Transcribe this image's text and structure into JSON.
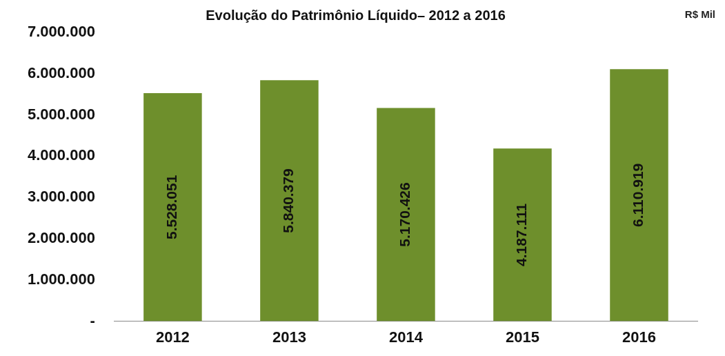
{
  "chart_data": {
    "type": "bar",
    "title": "Evolução do Patrimônio Líquido– 2012 a 2016",
    "annotations": [
      "R$ Mil"
    ],
    "categories": [
      "2012",
      "2013",
      "2014",
      "2015",
      "2016"
    ],
    "values": [
      5528051,
      5840379,
      5170426,
      4187111,
      6110919
    ],
    "value_labels": [
      "5.528.051",
      "5.840.379",
      "5.170.426",
      "4.187.111",
      "6.110.919"
    ],
    "color": "#6e8f2c",
    "ylim": [
      0,
      7000000
    ],
    "yticks": [
      {
        "value": 0,
        "label": "-"
      },
      {
        "value": 1000000,
        "label": "1.000.000"
      },
      {
        "value": 2000000,
        "label": "2.000.000"
      },
      {
        "value": 3000000,
        "label": "3.000.000"
      },
      {
        "value": 4000000,
        "label": "4.000.000"
      },
      {
        "value": 5000000,
        "label": "5.000.000"
      },
      {
        "value": 6000000,
        "label": "6.000.000"
      },
      {
        "value": 7000000,
        "label": "7.000.000"
      }
    ],
    "grid": false,
    "legend": false
  }
}
